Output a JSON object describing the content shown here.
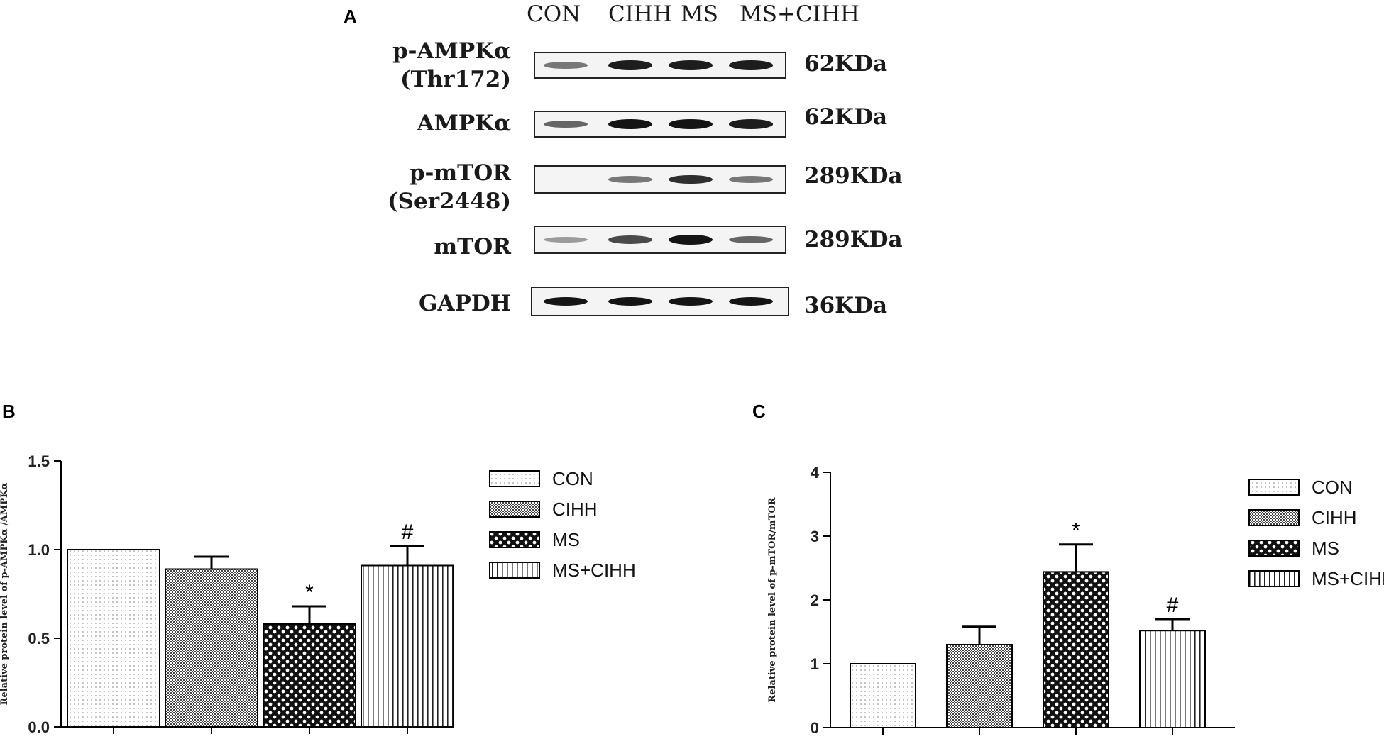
{
  "panel_labels": {
    "a": "A",
    "b": "B",
    "c": "C"
  },
  "western_blot": {
    "lanes": [
      "CON",
      "CIHH",
      "MS",
      "MS+CIHH"
    ],
    "rows": [
      {
        "label_line1": "p-AMPKα",
        "label_line2": "(Thr172)",
        "size": "62KDa",
        "intensities": [
          0.45,
          0.95,
          0.95,
          0.95
        ]
      },
      {
        "label_line1": "AMPKα",
        "label_line2": "",
        "size": "62KDa",
        "intensities": [
          0.55,
          1.0,
          1.0,
          0.95
        ]
      },
      {
        "label_line1": "p-mTOR",
        "label_line2": "(Ser2448)",
        "size": "289KDa",
        "intensities": [
          0.0,
          0.45,
          0.85,
          0.45
        ]
      },
      {
        "label_line1": "mTOR",
        "label_line2": "",
        "size": "289KDa",
        "intensities": [
          0.25,
          0.7,
          1.0,
          0.55
        ]
      },
      {
        "label_line1": "GAPDH",
        "label_line2": "",
        "size": "36KDa",
        "intensities": [
          1.0,
          1.0,
          1.0,
          1.0
        ]
      }
    ]
  },
  "chart_data": [
    {
      "type": "bar",
      "panel": "B",
      "categories": [
        "CON",
        "CIHH",
        "MS",
        "MS+CIHH"
      ],
      "values": [
        1.0,
        0.89,
        0.58,
        0.91
      ],
      "errors": [
        0.0,
        0.07,
        0.1,
        0.11
      ],
      "annotations": [
        "",
        "",
        "*",
        "#"
      ],
      "ylabel": "Relative protein level of p-AMPKα /AMPKα",
      "ylim": [
        0,
        1.5
      ],
      "yticks": [
        0.0,
        0.5,
        1.0,
        1.5
      ],
      "ytick_labels": [
        "0.0",
        "0.5",
        "1.0",
        "1.5"
      ],
      "legend": [
        "CON",
        "CIHH",
        "MS",
        "MS+CIHH"
      ],
      "legend_position": "right",
      "grid": false
    },
    {
      "type": "bar",
      "panel": "C",
      "categories": [
        "CON",
        "CIHH",
        "MS",
        "MS+CIHH"
      ],
      "values": [
        1.0,
        1.3,
        2.44,
        1.52
      ],
      "errors": [
        0.0,
        0.28,
        0.43,
        0.18
      ],
      "annotations": [
        "",
        "",
        "*",
        "#"
      ],
      "ylabel": "Relative protein level of p-mTOR/mTOR",
      "ylim": [
        0,
        4
      ],
      "yticks": [
        0,
        1,
        2,
        3,
        4
      ],
      "ytick_labels": [
        "0",
        "1",
        "2",
        "3",
        "4"
      ],
      "legend": [
        "CON",
        "CIHH",
        "MS",
        "MS+CIHH"
      ],
      "legend_position": "right",
      "grid": false
    }
  ]
}
